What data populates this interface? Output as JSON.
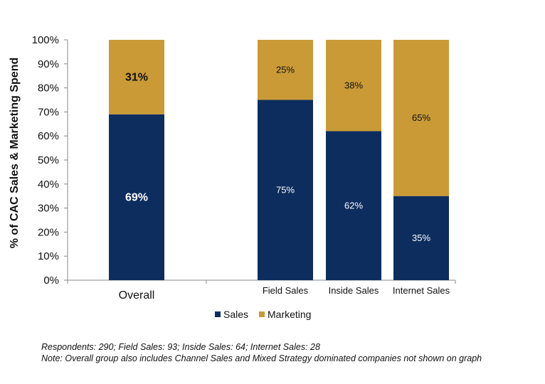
{
  "chart_data": {
    "type": "bar",
    "stacked": true,
    "ylabel": "% of CAC Sales & Marketing Spend",
    "xlabel": "",
    "ylim": [
      0,
      100
    ],
    "y_ticks": [
      "0%",
      "10%",
      "20%",
      "30%",
      "40%",
      "50%",
      "60%",
      "70%",
      "80%",
      "90%",
      "100%"
    ],
    "categories": [
      "Overall",
      "Field Sales",
      "Inside Sales",
      "Internet Sales"
    ],
    "series": [
      {
        "name": "Sales",
        "color": "#0c2d5e",
        "values": [
          69,
          75,
          62,
          35
        ],
        "labels": [
          "69%",
          "75%",
          "62%",
          "35%"
        ]
      },
      {
        "name": "Marketing",
        "color": "#c99a36",
        "values": [
          31,
          25,
          38,
          65
        ],
        "labels": [
          "31%",
          "25%",
          "38%",
          "65%"
        ]
      }
    ],
    "legend": "bottom-center",
    "grid": false
  },
  "notes": {
    "line1": "Respondents: 290; Field Sales: 93; Inside Sales: 64; Internet Sales: 28",
    "line2": "Note: Overall group also includes Channel Sales and Mixed Strategy dominated companies not shown on graph"
  }
}
